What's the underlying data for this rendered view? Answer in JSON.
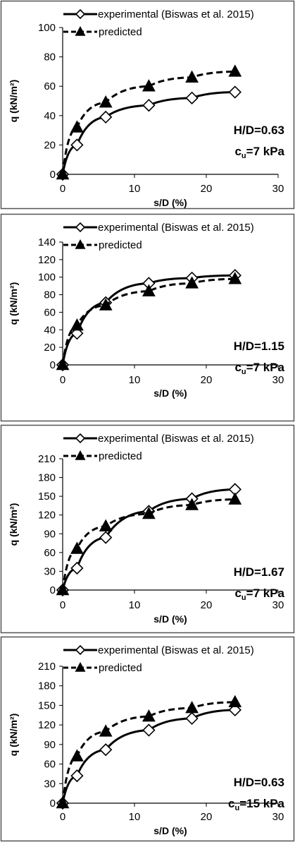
{
  "chart_data": [
    {
      "type": "line",
      "title": "",
      "xlabel": "s/D (%)",
      "ylabel": "q (kN/m²)",
      "xlim": [
        0,
        30
      ],
      "ylim": [
        0,
        100
      ],
      "xticks": [
        0,
        10,
        20,
        30
      ],
      "yticks": [
        0,
        20,
        40,
        60,
        80,
        100
      ],
      "grid": false,
      "legend_position": "top",
      "annotation": {
        "main": "H/D=0.63",
        "cu_symbol": "c",
        "cu_sub": "u",
        "cu_value": "=7 kPa"
      },
      "series": [
        {
          "name": "experimental (Biswas et al. 2015)",
          "marker": "diamond-open",
          "line": "solid",
          "x": [
            0,
            2,
            6,
            12,
            18,
            24
          ],
          "y": [
            0,
            20,
            39,
            47,
            52,
            56
          ]
        },
        {
          "name": "predicted",
          "marker": "triangle-filled",
          "line": "dashed",
          "x": [
            0,
            2,
            6,
            12,
            18,
            24
          ],
          "y": [
            0,
            32,
            49,
            60,
            66,
            70
          ]
        }
      ]
    },
    {
      "type": "line",
      "title": "",
      "xlabel": "s/D (%)",
      "ylabel": "q (kN/m²)",
      "xlim": [
        0,
        30
      ],
      "ylim": [
        0,
        140
      ],
      "xticks": [
        0,
        10,
        20,
        30
      ],
      "yticks": [
        0,
        20,
        40,
        60,
        80,
        100,
        120,
        140
      ],
      "grid": false,
      "legend_position": "top",
      "annotation": {
        "main": "H/D=1.15",
        "cu_symbol": "c",
        "cu_sub": "u",
        "cu_value": "=7 kPa"
      },
      "series": [
        {
          "name": "experimental (Biswas et al. 2015)",
          "marker": "diamond-open",
          "line": "solid",
          "x": [
            0,
            2,
            6,
            12,
            18,
            24
          ],
          "y": [
            0,
            36,
            71,
            93,
            99,
            102
          ]
        },
        {
          "name": "predicted",
          "marker": "triangle-filled",
          "line": "dashed",
          "x": [
            0,
            2,
            6,
            12,
            18,
            24
          ],
          "y": [
            0,
            45,
            68,
            84,
            93,
            98
          ]
        }
      ]
    },
    {
      "type": "line",
      "title": "",
      "xlabel": "s/D (%)",
      "ylabel": "q (kN/m²)",
      "xlim": [
        0,
        30
      ],
      "ylim": [
        0,
        210
      ],
      "xticks": [
        0,
        10,
        20,
        30
      ],
      "yticks": [
        0,
        30,
        60,
        90,
        120,
        150,
        180,
        210
      ],
      "grid": false,
      "legend_position": "top",
      "annotation": {
        "main": "H/D=1.67",
        "cu_symbol": "c",
        "cu_sub": "u",
        "cu_value": "=7 kPa"
      },
      "series": [
        {
          "name": "experimental (Biswas et al. 2015)",
          "marker": "diamond-open",
          "line": "solid",
          "x": [
            0,
            2,
            6,
            12,
            18,
            24
          ],
          "y": [
            0,
            35,
            84,
            126,
            146,
            161
          ]
        },
        {
          "name": "predicted",
          "marker": "triangle-filled",
          "line": "dashed",
          "x": [
            0,
            2,
            6,
            12,
            18,
            24
          ],
          "y": [
            0,
            66,
            102,
            122,
            136,
            145
          ]
        }
      ]
    },
    {
      "type": "line",
      "title": "",
      "xlabel": "s/D (%)",
      "ylabel": "q (kN/m²)",
      "xlim": [
        0,
        30
      ],
      "ylim": [
        0,
        210
      ],
      "xticks": [
        0,
        10,
        20,
        30
      ],
      "yticks": [
        0,
        30,
        60,
        90,
        120,
        150,
        180,
        210
      ],
      "grid": false,
      "legend_position": "top",
      "annotation": {
        "main": "H/D=0.63",
        "cu_symbol": "c",
        "cu_sub": "u",
        "cu_value": "=15 kPa"
      },
      "series": [
        {
          "name": "experimental (Biswas et al. 2015)",
          "marker": "diamond-open",
          "line": "solid",
          "x": [
            0,
            2,
            6,
            12,
            18,
            24
          ],
          "y": [
            0,
            42,
            82,
            112,
            130,
            143
          ]
        },
        {
          "name": "predicted",
          "marker": "triangle-filled",
          "line": "dashed",
          "x": [
            0,
            2,
            6,
            12,
            18,
            24
          ],
          "y": [
            0,
            72,
            110,
            133,
            146,
            155
          ]
        }
      ]
    }
  ],
  "colors": {
    "line": "#000000",
    "marker_fill_open": "#ffffff",
    "frame": "#555555",
    "background": "#ffffff"
  }
}
